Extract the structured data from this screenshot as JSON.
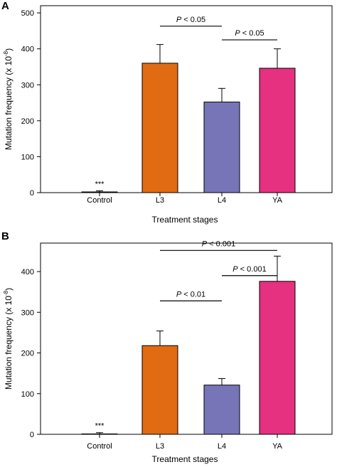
{
  "chart_data": [
    {
      "panel": "A",
      "type": "bar",
      "title": "",
      "xlabel": "Treatment stages",
      "ylabel": "Mutation frequency (x 10",
      "ylabel_exponent": "-8",
      "ylabel_suffix": ")",
      "categories": [
        "Control",
        "L3",
        "L4",
        "YA"
      ],
      "values": [
        2,
        360,
        252,
        346
      ],
      "errors": [
        3,
        52,
        38,
        54
      ],
      "colors": [
        "#ffffff",
        "#e06b12",
        "#7775b8",
        "#e5317f"
      ],
      "ylim": [
        0,
        520
      ],
      "yticks": [
        0,
        100,
        200,
        300,
        400,
        500
      ],
      "annotations": [
        {
          "category": "Control",
          "text": "***"
        }
      ],
      "comparisons": [
        {
          "from": "L3",
          "to": "L4",
          "p_label": "P",
          "p_text": " < 0.05",
          "y": 463
        },
        {
          "from": "L4",
          "to": "YA",
          "p_label": "P",
          "p_text": " < 0.05",
          "y": 425
        }
      ],
      "grid": false
    },
    {
      "panel": "B",
      "type": "bar",
      "title": "",
      "xlabel": "Treatment stages",
      "ylabel": "Mutation frequency (x 10",
      "ylabel_exponent": "-8",
      "ylabel_suffix": ")",
      "categories": [
        "Control",
        "L3",
        "L4",
        "YA"
      ],
      "values": [
        1,
        218,
        121,
        376
      ],
      "errors": [
        3,
        36,
        16,
        62
      ],
      "colors": [
        "#ffffff",
        "#e06b12",
        "#7775b8",
        "#e5317f"
      ],
      "ylim": [
        0,
        470
      ],
      "yticks": [
        0,
        100,
        200,
        300,
        400
      ],
      "annotations": [
        {
          "category": "Control",
          "text": "***"
        }
      ],
      "comparisons": [
        {
          "from": "L3",
          "to": "YA",
          "p_label": "P",
          "p_text": " < 0.001",
          "y": 452
        },
        {
          "from": "L4",
          "to": "YA",
          "p_label": "P",
          "p_text": " < 0.001",
          "y": 390
        },
        {
          "from": "L3",
          "to": "L4",
          "p_label": "P",
          "p_text": " < 0.01",
          "y": 328
        }
      ],
      "grid": false
    }
  ]
}
